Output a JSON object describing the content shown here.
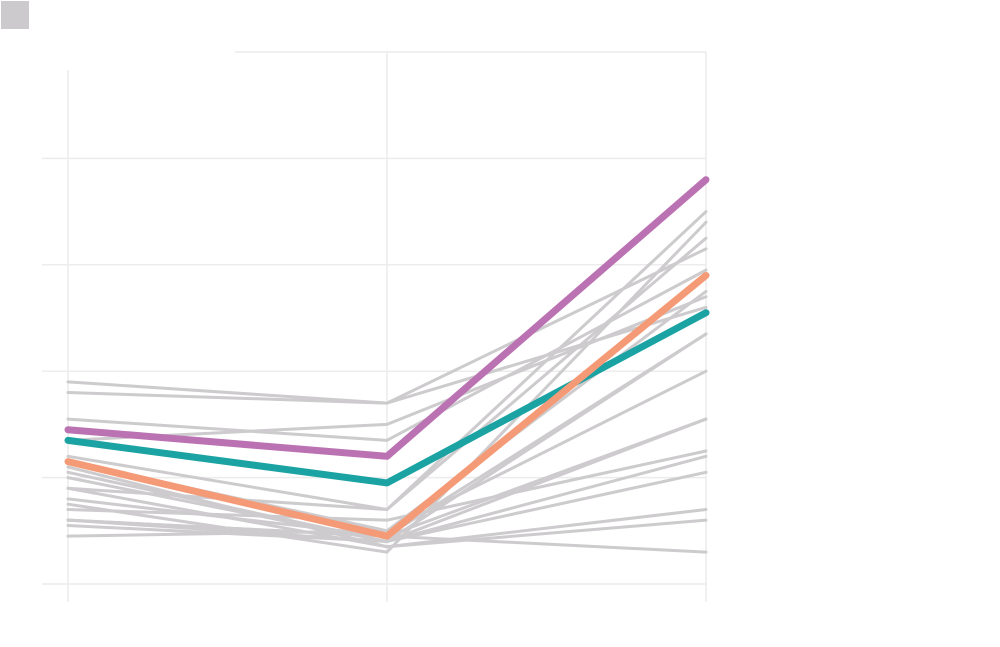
{
  "chart_data": {
    "type": "line",
    "x": [
      0,
      1,
      2
    ],
    "ylim": [
      0,
      100
    ],
    "grid": true,
    "legend": "top-left",
    "colors": {
      "background": "#ffffff",
      "grid": "#ececec",
      "context": "#cdcbcd",
      "legend_swatch": "#cccacd"
    },
    "series": [
      {
        "values": [
          15,
          6,
          68
        ]
      },
      {
        "values": [
          12,
          8,
          47
        ]
      },
      {
        "values": [
          9,
          10,
          55
        ]
      },
      {
        "values": [
          11,
          8,
          21
        ]
      },
      {
        "values": [
          16,
          9,
          47
        ]
      },
      {
        "values": [
          18,
          14,
          70
        ]
      },
      {
        "values": [
          21,
          8,
          24
        ]
      },
      {
        "values": [
          24,
          14,
          65
        ]
      },
      {
        "values": [
          31,
          27,
          59
        ]
      },
      {
        "values": [
          27,
          30,
          54
        ]
      },
      {
        "values": [
          23,
          10,
          40
        ]
      },
      {
        "values": [
          20,
          8,
          31
        ]
      },
      {
        "values": [
          14,
          12,
          25
        ]
      },
      {
        "values": [
          38,
          34,
          63
        ]
      },
      {
        "values": [
          36,
          34,
          52
        ]
      },
      {
        "values": [
          22,
          7,
          14
        ]
      },
      {
        "values": [
          12,
          9,
          6
        ]
      },
      {
        "values": [
          12,
          9,
          31
        ]
      },
      {
        "values": [
          18,
          7,
          12
        ]
      },
      {
        "values": [
          29,
          24,
          76
        ],
        "color": "#bb72b3",
        "highlight": true
      },
      {
        "values": [
          27,
          19,
          51
        ],
        "color": "#1ba3a3",
        "highlight": true
      },
      {
        "values": [
          23,
          9,
          58
        ],
        "color": "#f59a76",
        "highlight": true
      }
    ]
  }
}
